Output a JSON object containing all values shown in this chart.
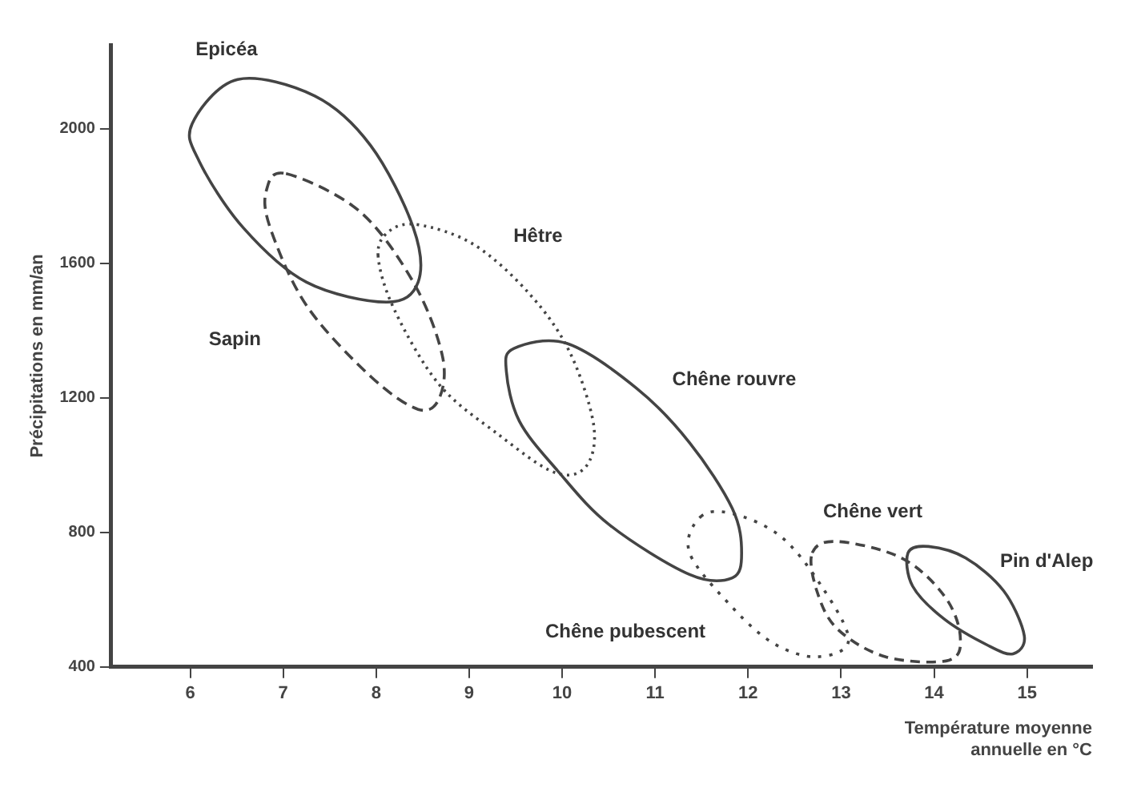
{
  "chart_data": {
    "type": "line",
    "xlabel": "Température moyenne\nannuelle en °C",
    "ylabel": "Précipitations en mm/an",
    "xlim": [
      5.15,
      15.7
    ],
    "xticks": [
      6,
      7,
      8,
      9,
      10,
      11,
      12,
      13,
      14,
      15
    ],
    "ylim": [
      400,
      2250
    ],
    "yticks": [
      400,
      800,
      1200,
      1600,
      2000
    ],
    "grid": false,
    "legend": false,
    "annotations": [
      "Epicéa",
      "Sapin",
      "Hêtre",
      "Chêne rouvre",
      "Chêne pubescent",
      "Chêne vert",
      "Pin d'Alep"
    ]
  }
}
